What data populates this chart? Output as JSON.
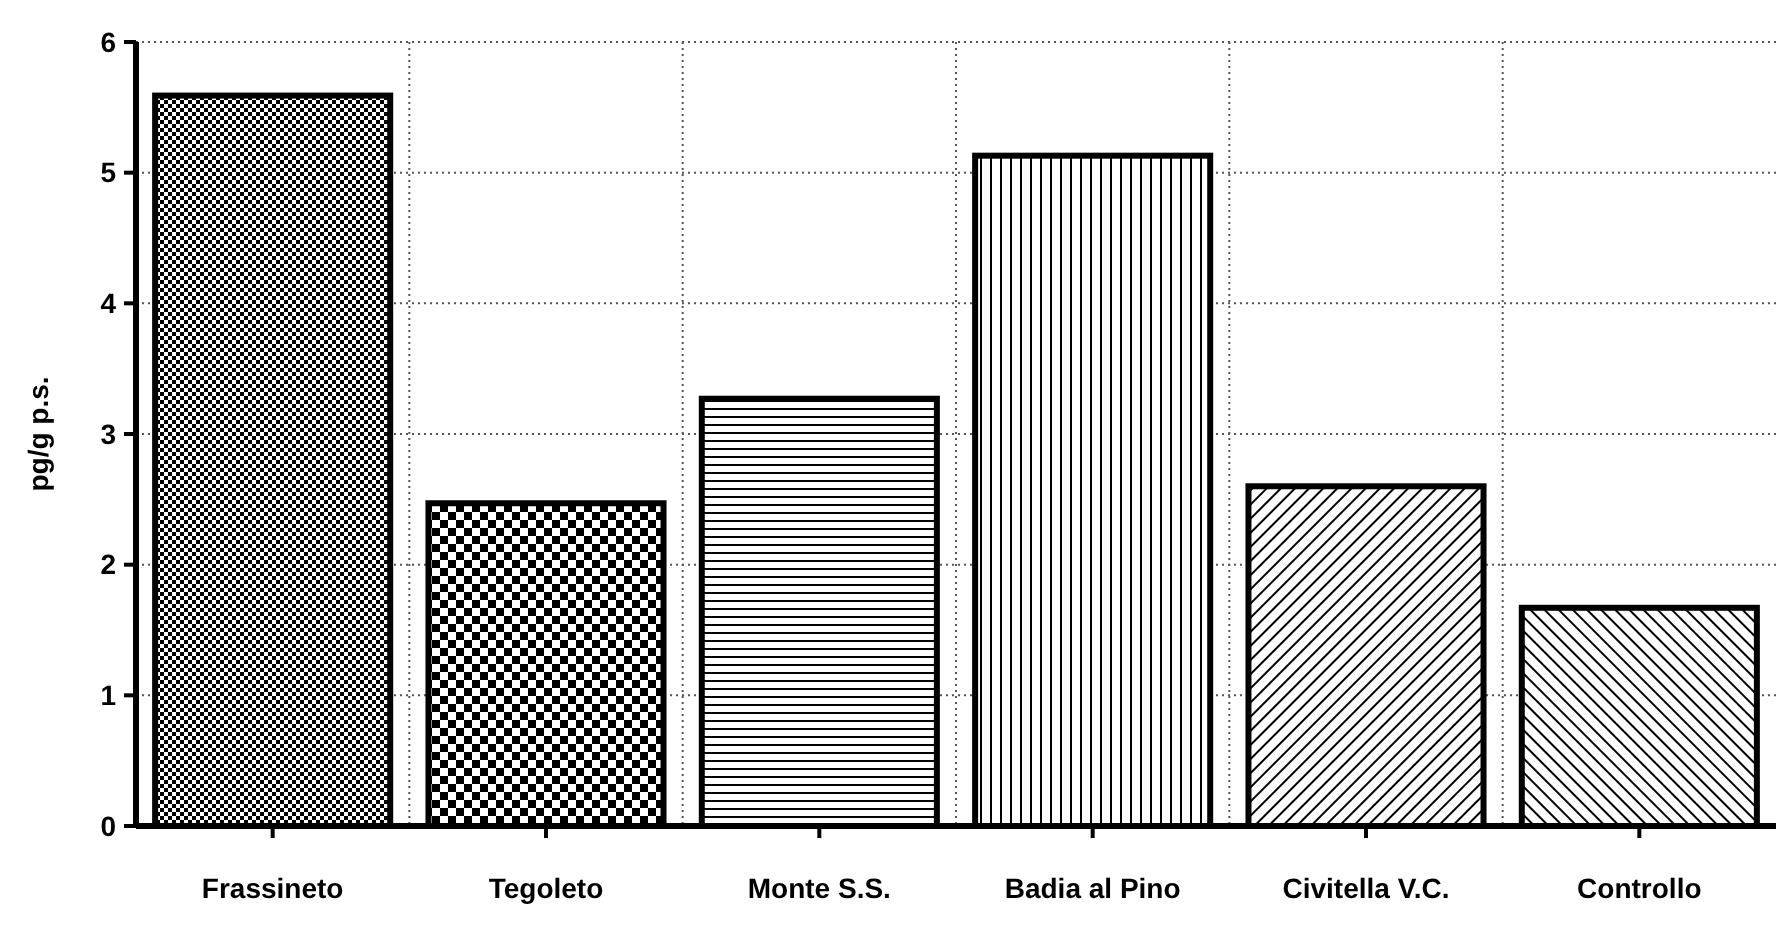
{
  "chart_data": {
    "type": "bar",
    "ylabel": "pg/g p.s.",
    "categories": [
      "Frassineto",
      "Tegoleto",
      "Monte S.S.",
      "Badia al Pino",
      "Civitella V.C.",
      "Controllo"
    ],
    "values": [
      5.59,
      2.47,
      3.27,
      5.13,
      2.6,
      1.67
    ],
    "color": "#000000",
    "ylim": [
      0,
      6
    ],
    "yticks": [
      0,
      1,
      2,
      3,
      4,
      5,
      6
    ],
    "grid": true
  }
}
